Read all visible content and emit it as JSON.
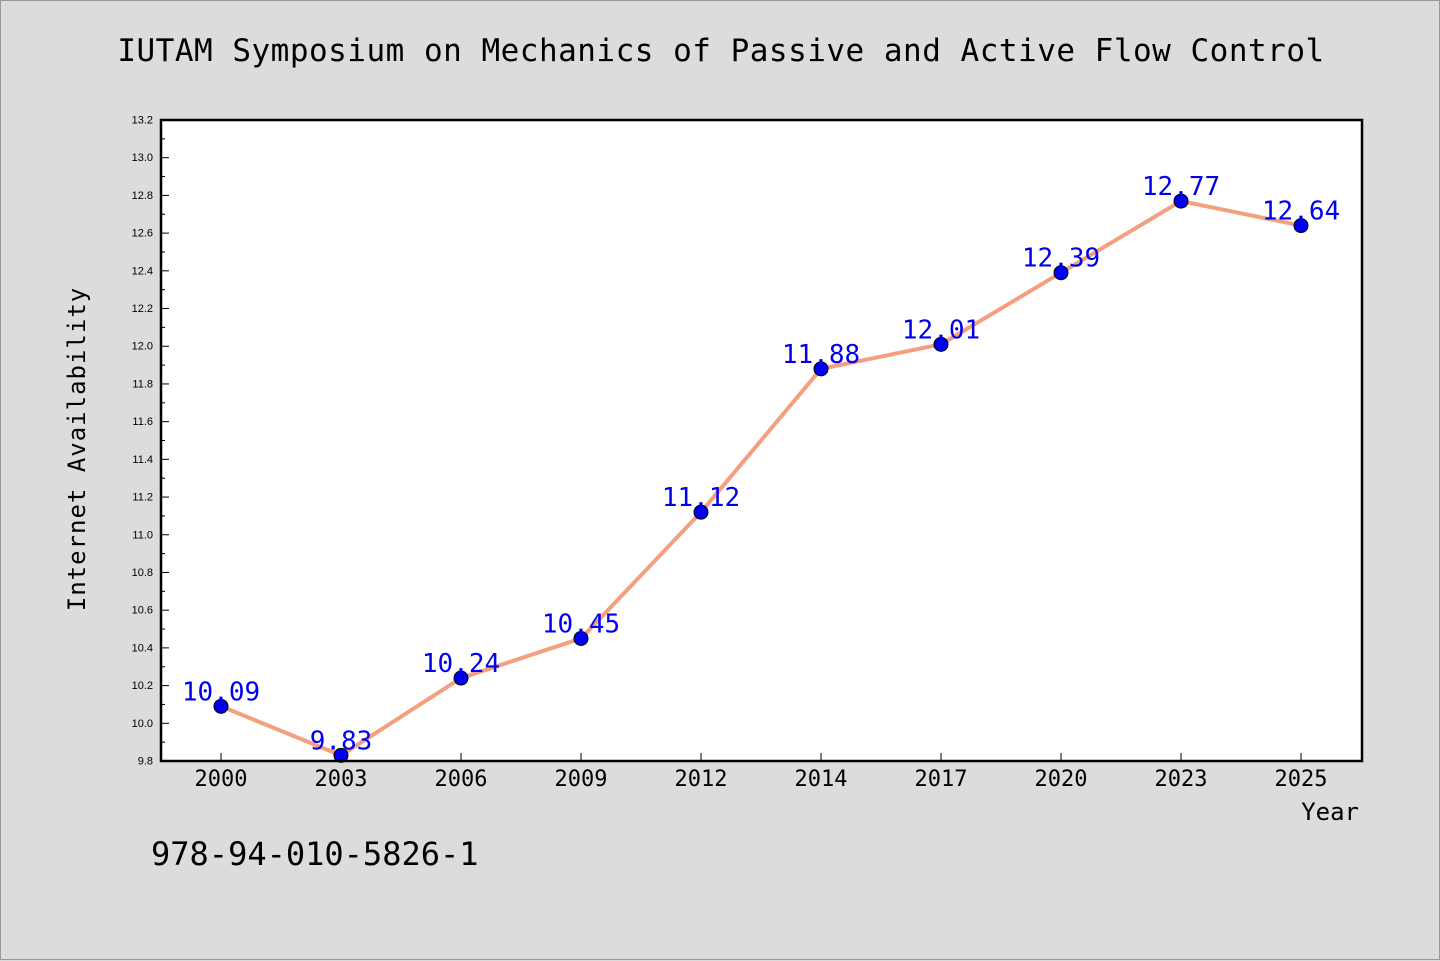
{
  "chart_data": {
    "type": "line",
    "title": "IUTAM Symposium on Mechanics of Passive and Active Flow Control",
    "xlabel": "Year",
    "ylabel": "Internet Availability",
    "categories": [
      "2000",
      "2003",
      "2006",
      "2009",
      "2012",
      "2014",
      "2017",
      "2020",
      "2023",
      "2025"
    ],
    "series": [
      {
        "values": [
          10.09,
          9.83,
          10.24,
          10.45,
          11.12,
          11.88,
          12.01,
          12.39,
          12.77,
          12.64
        ],
        "line_color": "#f4a07e",
        "marker_color": "#0000ee",
        "label_color": "#0000ee"
      }
    ],
    "ylim": [
      9.8,
      13.2
    ],
    "yticks": [
      "9.8",
      "10.0",
      "10.2",
      "10.4",
      "10.6",
      "10.8",
      "11.0",
      "11.2",
      "11.4",
      "11.6",
      "11.8",
      "12.0",
      "12.2",
      "12.4",
      "12.6",
      "12.8",
      "13.0",
      "13.2"
    ],
    "grid": false,
    "data_labels": true
  },
  "footnote": "978-94-010-5826-1"
}
